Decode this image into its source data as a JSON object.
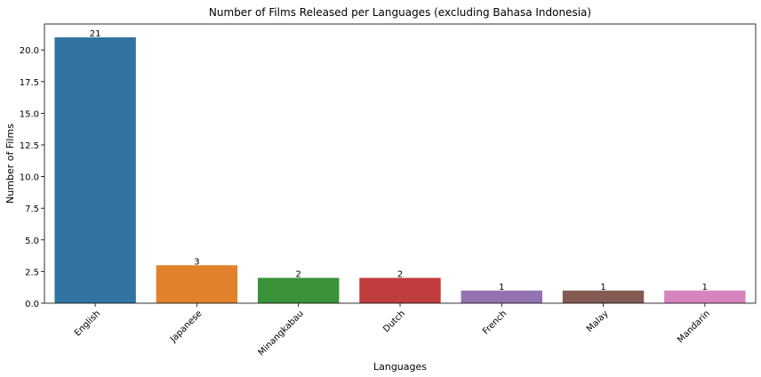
{
  "chart_data": {
    "type": "bar",
    "title": "Number of Films Released per Languages (excluding Bahasa Indonesia)",
    "xlabel": "Languages",
    "ylabel": "Number of Films",
    "categories": [
      "English",
      "Japanese",
      "Minangkabau",
      "Dutch",
      "French",
      "Malay",
      "Mandarin"
    ],
    "values": [
      21,
      3,
      2,
      2,
      1,
      1,
      1
    ],
    "data_labels": [
      "21",
      "3",
      "2",
      "2",
      "1",
      "1",
      "1"
    ],
    "colors": [
      "#3274a1",
      "#e1812c",
      "#3a923a",
      "#c03d3e",
      "#9372b2",
      "#845b53",
      "#d684bd"
    ],
    "ylim": [
      0,
      22.05
    ],
    "yticks": [
      0,
      2.5,
      5,
      7.5,
      10,
      12.5,
      15,
      17.5,
      20
    ],
    "ytick_labels": [
      "0.0",
      "2.5",
      "5.0",
      "7.5",
      "10.0",
      "12.5",
      "15.0",
      "17.5",
      "20.0"
    ],
    "grid": false,
    "legend": "none"
  }
}
